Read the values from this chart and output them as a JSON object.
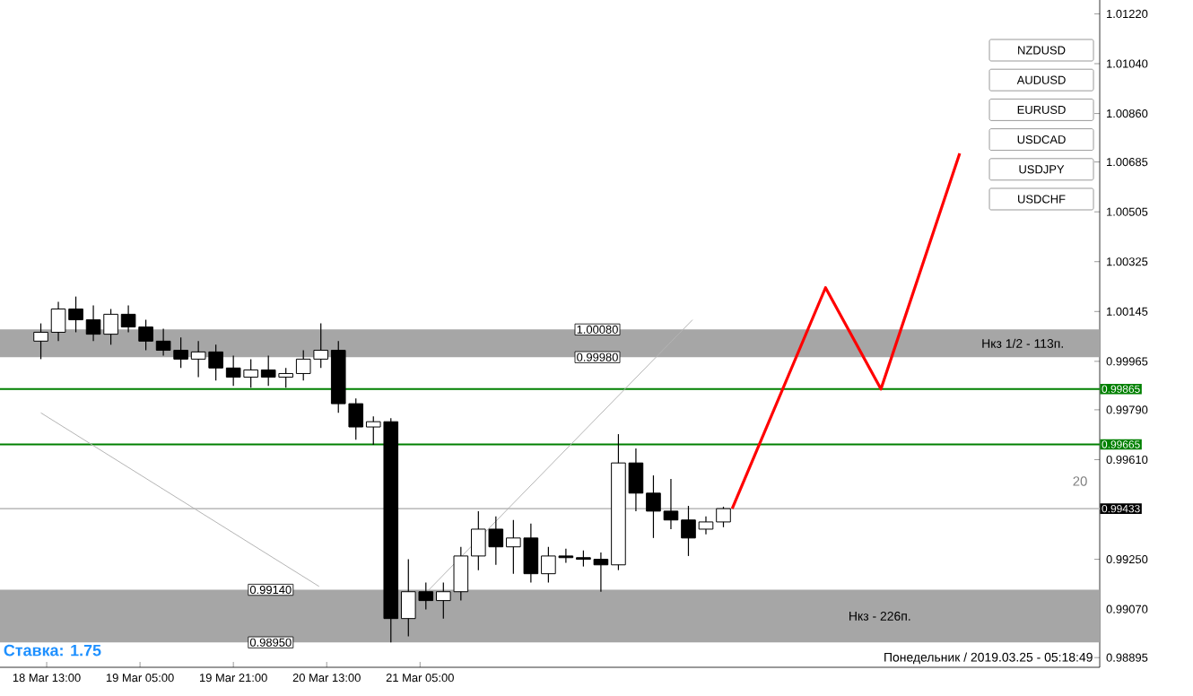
{
  "chart_data": {
    "type": "candlestick",
    "x": [
      "2019-03-18T12:00",
      "2019-03-18T15:00",
      "2019-03-18T18:00",
      "2019-03-18T21:00",
      "2019-03-19T00:00",
      "2019-03-19T03:00",
      "2019-03-19T06:00",
      "2019-03-19T09:00",
      "2019-03-19T12:00",
      "2019-03-19T15:00",
      "2019-03-19T18:00",
      "2019-03-19T21:00",
      "2019-03-20T00:00",
      "2019-03-20T03:00",
      "2019-03-20T06:00",
      "2019-03-20T09:00",
      "2019-03-20T12:00",
      "2019-03-20T15:00",
      "2019-03-20T18:00",
      "2019-03-20T21:00",
      "2019-03-21T00:00",
      "2019-03-21T03:00",
      "2019-03-21T06:00",
      "2019-03-21T09:00",
      "2019-03-21T12:00",
      "2019-03-21T15:00",
      "2019-03-21T18:00",
      "2019-03-21T21:00",
      "2019-03-22T00:00",
      "2019-03-22T03:00",
      "2019-03-22T06:00",
      "2019-03-22T09:00",
      "2019-03-22T12:00",
      "2019-03-22T15:00",
      "2019-03-22T18:00",
      "2019-03-22T21:00",
      "2019-03-23T00:00",
      "2019-03-23T03:00",
      "2019-03-23T06:00",
      "2019-03-23T09:00"
    ],
    "ohlc": [
      [
        1.00038,
        1.00102,
        0.99973,
        1.0007
      ],
      [
        1.0007,
        1.0018,
        1.00038,
        1.00154
      ],
      [
        1.00154,
        1.00199,
        1.0007,
        1.00115
      ],
      [
        1.00115,
        1.00167,
        1.00038,
        1.00063
      ],
      [
        1.00063,
        1.00154,
        1.00025,
        1.00135
      ],
      [
        1.00135,
        1.00167,
        1.0007,
        1.00089
      ],
      [
        1.00089,
        1.00115,
        1.00005,
        1.00038
      ],
      [
        1.00038,
        1.00083,
        0.99986,
        1.00005
      ],
      [
        1.00005,
        1.00051,
        0.99941,
        0.99973
      ],
      [
        0.99973,
        1.00038,
        0.99908,
        0.99999
      ],
      [
        0.99999,
        1.00025,
        0.99896,
        0.99941
      ],
      [
        0.99941,
        0.99986,
        0.99876,
        0.99908
      ],
      [
        0.99908,
        0.99973,
        0.9987,
        0.99934
      ],
      [
        0.99934,
        0.99986,
        0.99876,
        0.99908
      ],
      [
        0.99908,
        0.99941,
        0.9987,
        0.99921
      ],
      [
        0.99921,
        1.00005,
        0.99896,
        0.99973
      ],
      [
        0.99973,
        1.00102,
        0.99941,
        1.00005
      ],
      [
        1.00005,
        1.00038,
        0.99779,
        0.99812
      ],
      [
        0.99812,
        0.99831,
        0.99682,
        0.99728
      ],
      [
        0.99728,
        0.99766,
        0.99663,
        0.99747
      ],
      [
        0.99747,
        0.9976,
        0.9895,
        0.99036
      ],
      [
        0.99036,
        0.9925,
        0.98972,
        0.99133
      ],
      [
        0.99133,
        0.99166,
        0.99069,
        0.99101
      ],
      [
        0.99101,
        0.99166,
        0.99036,
        0.99133
      ],
      [
        0.99133,
        0.99295,
        0.99101,
        0.99262
      ],
      [
        0.99262,
        0.99424,
        0.99211,
        0.99359
      ],
      [
        0.99359,
        0.99405,
        0.9923,
        0.99295
      ],
      [
        0.99295,
        0.99392,
        0.99198,
        0.99327
      ],
      [
        0.99327,
        0.99379,
        0.99166,
        0.99198
      ],
      [
        0.99198,
        0.99295,
        0.99166,
        0.99262
      ],
      [
        0.99262,
        0.99288,
        0.99237,
        0.99256
      ],
      [
        0.99256,
        0.99282,
        0.99224,
        0.9925
      ],
      [
        0.9925,
        0.99275,
        0.99133,
        0.9923
      ],
      [
        0.9923,
        0.99702,
        0.99211,
        0.99598
      ],
      [
        0.99598,
        0.9965,
        0.99424,
        0.99489
      ],
      [
        0.99489,
        0.99553,
        0.99327,
        0.99424
      ],
      [
        0.99424,
        0.9954,
        0.99359,
        0.99392
      ],
      [
        0.99392,
        0.99443,
        0.99262,
        0.99327
      ],
      [
        0.99359,
        0.99405,
        0.9934,
        0.99385
      ],
      [
        0.99385,
        0.9944,
        0.99366,
        0.99433
      ]
    ],
    "series": [
      {
        "type": "line",
        "color": "#b4b4b4",
        "x": [
          "2019-03-18T12:00",
          "2019-03-20T11:42"
        ],
        "values": [
          0.99779,
          0.99152
        ]
      },
      {
        "type": "line",
        "color": "#b4b4b4",
        "x": [
          "2019-03-21T06:12",
          "2019-03-23T03:42"
        ],
        "values": [
          0.99133,
          1.00115
        ]
      },
      {
        "type": "line",
        "color": "#ff0000",
        "x": [
          "2019-03-23T10:30",
          "2019-03-24T02:30",
          "2019-03-24T12:00",
          "2019-03-25T01:30"
        ],
        "values": [
          0.99433,
          1.00231,
          0.99865,
          1.00716
        ]
      }
    ],
    "xlim": [
      "2019-03-18T05:00",
      "2019-03-26T01:30"
    ],
    "ylim": [
      0.9886,
      1.0127
    ],
    "xticks": [
      {
        "value": "2019-03-18T13:00",
        "label": "18 Mar 13:00"
      },
      {
        "value": "2019-03-19T05:00",
        "label": "19 Mar 05:00"
      },
      {
        "value": "2019-03-19T21:00",
        "label": "19 Mar 21:00"
      },
      {
        "value": "2019-03-20T13:00",
        "label": "20 Mar 13:00"
      },
      {
        "value": "2019-03-21T05:00",
        "label": "21 Mar 05:00"
      }
    ],
    "yticks": [
      {
        "value": 1.0122,
        "label": "1.01220"
      },
      {
        "value": 1.0104,
        "label": "1.01040"
      },
      {
        "value": 1.0086,
        "label": "1.00860"
      },
      {
        "value": 1.00685,
        "label": "1.00685"
      },
      {
        "value": 1.00505,
        "label": "1.00505"
      },
      {
        "value": 1.00325,
        "label": "1.00325"
      },
      {
        "value": 1.00145,
        "label": "1.00145"
      },
      {
        "value": 0.99965,
        "label": "0.99965"
      },
      {
        "value": 0.9979,
        "label": "0.99790"
      },
      {
        "value": 0.9961,
        "label": "0.99610"
      },
      {
        "value": 0.9925,
        "label": "0.99250"
      },
      {
        "value": 0.9907,
        "label": "0.99070"
      },
      {
        "value": 0.98895,
        "label": "0.98895"
      }
    ],
    "ref_lines": [
      {
        "axis": "y",
        "value": 0.99865,
        "label": "0.99865",
        "color": "#008000"
      },
      {
        "axis": "y",
        "value": 0.99665,
        "label": "0.99665",
        "color": "#008000"
      },
      {
        "axis": "y",
        "value": 0.99433,
        "label": "0.99433",
        "color": "#c0c0c0"
      }
    ],
    "bands": [
      {
        "axis": "y",
        "from": 0.9998,
        "to": 1.0008,
        "label": "Нкз 1/2 - 113п.",
        "color": "#a6a6a6"
      },
      {
        "axis": "y",
        "from": 0.9895,
        "to": 0.9914,
        "label": "Нкз - 226п.",
        "color": "#a6a6a6"
      }
    ],
    "annotations": [
      "Ставка: 1.75",
      "Понедельник / 2019.03.25 - 05:18:49",
      "20",
      "NZDUSD",
      "AUDUSD",
      "EURUSD",
      "USDCAD",
      "USDJPY",
      "USDCHF",
      {
        "text": "1.00080",
        "x": "2019-03-22T11:24",
        "y": 1.0008
      },
      {
        "text": "0.99980",
        "x": "2019-03-22T11:24",
        "y": 0.9998
      },
      {
        "text": "0.99140",
        "x": "2019-03-20T03:24",
        "y": 0.9914
      },
      {
        "text": "0.98950",
        "x": "2019-03-20T03:24",
        "y": 0.9895
      }
    ]
  }
}
